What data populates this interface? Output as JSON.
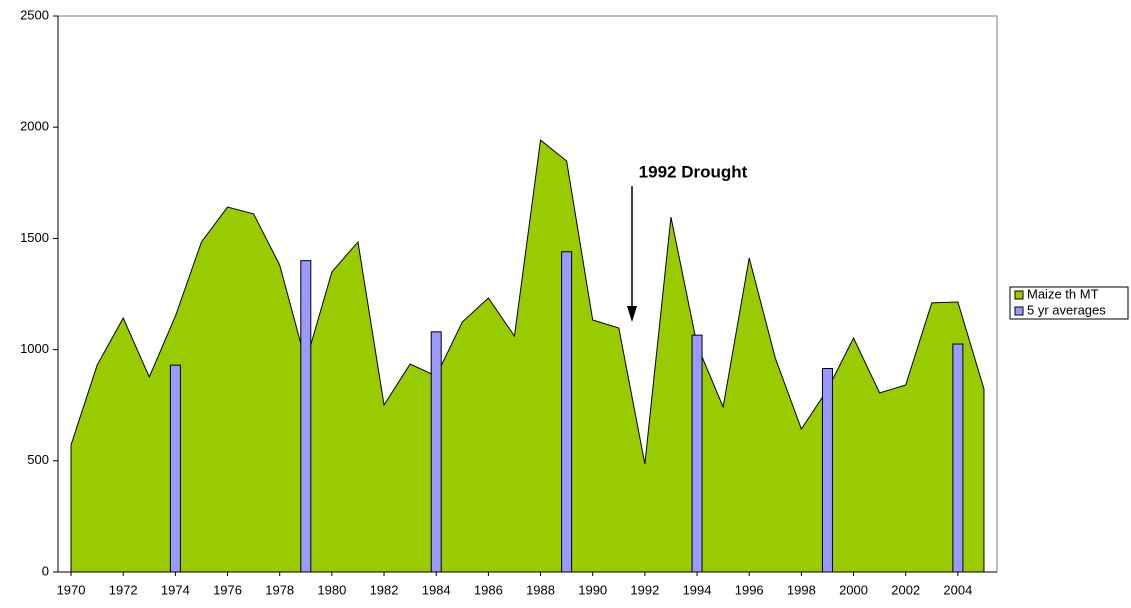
{
  "chart_data": {
    "type": "area-bar",
    "annotation": "1992 Drought",
    "x": [
      1970,
      1971,
      1972,
      1973,
      1974,
      1975,
      1976,
      1977,
      1978,
      1979,
      1980,
      1981,
      1982,
      1983,
      1984,
      1985,
      1986,
      1987,
      1988,
      1989,
      1990,
      1991,
      1992,
      1993,
      1994,
      1995,
      1996,
      1997,
      1998,
      1999,
      2000,
      2001,
      2002,
      2003,
      2004,
      2005
    ],
    "xlim": [
      1969.5,
      2005.5
    ],
    "xticks": [
      1970,
      1972,
      1974,
      1976,
      1978,
      1980,
      1982,
      1984,
      1986,
      1988,
      1990,
      1992,
      1994,
      1996,
      1998,
      2000,
      2002,
      2004
    ],
    "ylim": [
      0,
      2500
    ],
    "yticks": [
      0,
      500,
      1000,
      1500,
      2000,
      2500
    ],
    "legend": "right",
    "series": [
      {
        "name": "Maize th MT",
        "color": "#99cc00",
        "kind": "area",
        "values": [
          571,
          930,
          1142,
          877,
          1150,
          1484,
          1641,
          1610,
          1380,
          944,
          1349,
          1484,
          751,
          935,
          881,
          1124,
          1232,
          1061,
          1942,
          1848,
          1133,
          1097,
          486,
          1596,
          1021,
          742,
          1412,
          962,
          643,
          820,
          1052,
          805,
          841,
          1210,
          1214,
          823
        ]
      },
      {
        "name": "5 yr averages",
        "color": "#9999ff",
        "kind": "bar",
        "values": [
          null,
          null,
          null,
          null,
          930,
          null,
          null,
          null,
          null,
          1400,
          null,
          null,
          null,
          null,
          1080,
          null,
          null,
          null,
          null,
          1440,
          null,
          null,
          null,
          null,
          1065,
          null,
          null,
          null,
          null,
          915,
          null,
          null,
          null,
          null,
          1025,
          null
        ]
      }
    ]
  }
}
